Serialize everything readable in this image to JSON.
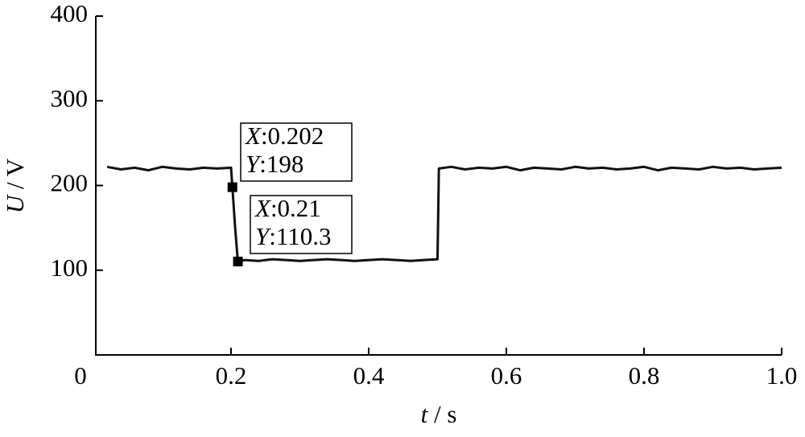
{
  "chart_data": {
    "type": "line",
    "xlabel": "t / s",
    "ylabel": "U / V",
    "x": [
      0.02,
      0.04,
      0.06,
      0.08,
      0.1,
      0.12,
      0.14,
      0.16,
      0.18,
      0.2,
      0.202,
      0.206,
      0.21,
      0.22,
      0.24,
      0.26,
      0.28,
      0.3,
      0.32,
      0.34,
      0.36,
      0.38,
      0.4,
      0.42,
      0.44,
      0.46,
      0.48,
      0.5,
      0.502,
      0.52,
      0.54,
      0.56,
      0.58,
      0.6,
      0.62,
      0.64,
      0.66,
      0.68,
      0.7,
      0.72,
      0.74,
      0.76,
      0.78,
      0.8,
      0.82,
      0.84,
      0.86,
      0.88,
      0.9,
      0.92,
      0.94,
      0.96,
      0.98,
      1.0
    ],
    "series": [
      {
        "color": "#111111",
        "values": [
          222,
          219,
          221,
          218,
          222,
          220,
          219,
          221,
          220,
          221,
          198,
          150,
          110.3,
          112,
          111,
          113,
          112,
          111,
          112,
          113,
          112,
          111,
          112,
          113,
          112,
          111,
          112,
          113,
          220,
          222,
          219,
          221,
          220,
          222,
          218,
          221,
          220,
          219,
          222,
          220,
          221,
          219,
          220,
          222,
          218,
          221,
          220,
          219,
          222,
          220,
          221,
          219,
          220,
          221
        ]
      }
    ],
    "xlim": [
      0,
      1
    ],
    "xticks": [
      0,
      0.2,
      0.4,
      0.6,
      0.8,
      {
        "value": 1,
        "label": "1.0"
      }
    ],
    "ylim": [
      0,
      400
    ],
    "yticks": [
      100,
      200,
      300,
      400
    ],
    "annotations": [
      {
        "x": 0.202,
        "y": 198,
        "lines": [
          "X:0.202",
          "Y:198"
        ]
      },
      {
        "x": 0.21,
        "y": 110.3,
        "lines": [
          "X:0.21",
          "Y:110.3"
        ]
      }
    ]
  }
}
